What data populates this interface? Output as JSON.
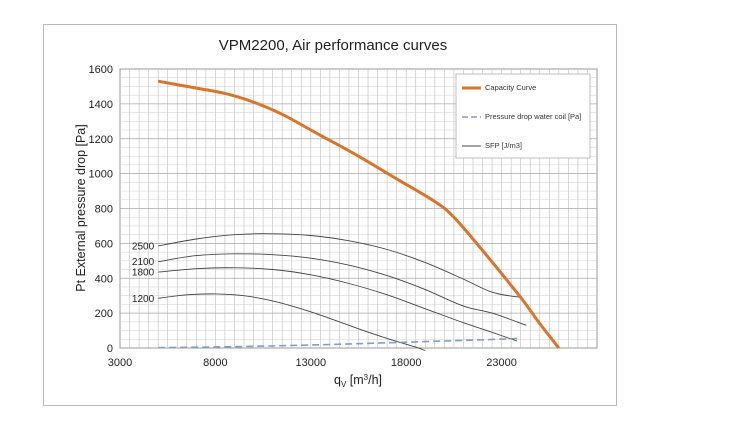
{
  "chart_data": {
    "type": "line",
    "title": "VPM2200, Air performance curves",
    "xlabel_main": "q",
    "xlabel_sub": "V",
    "xlabel_rest": " [m",
    "xlabel_sup": "3",
    "xlabel_end": "/h]",
    "ylabel": "Pt External pressure drop [Pa]",
    "xlim": [
      3000,
      28000
    ],
    "ylim": [
      0,
      1600
    ],
    "x_ticks": [
      3000,
      8000,
      13000,
      18000,
      23000
    ],
    "x_tick_labels": [
      "3000",
      "8000",
      "13000",
      "18000",
      "23000"
    ],
    "y_ticks": [
      0,
      200,
      400,
      600,
      800,
      1000,
      1200,
      1400,
      1600
    ],
    "y_tick_labels": [
      "0",
      "200",
      "400",
      "600",
      "800",
      "1000",
      "1200",
      "1400",
      "1600"
    ],
    "grid": true,
    "legend_position": "top-right",
    "legend": [
      {
        "label": "Capacity Curve",
        "color": "#d9742a",
        "style": "solid-thick"
      },
      {
        "label": "Pressure drop water coil [Pa]",
        "color": "#7f9dc8",
        "style": "dashed"
      },
      {
        "label": "SFP [J/m3]",
        "color": "#444444",
        "style": "solid-thin"
      }
    ],
    "series": [
      {
        "name": "Capacity Curve",
        "color": "#d9742a",
        "x": [
          5000,
          6500,
          8500,
          10000,
          11500,
          13500,
          15500,
          17500,
          19500,
          20500,
          22000,
          24000,
          25000,
          26000
        ],
        "y": [
          1530,
          1500,
          1460,
          1410,
          1340,
          1220,
          1100,
          970,
          840,
          750,
          560,
          290,
          140,
          0
        ]
      },
      {
        "name": "Pressure drop water coil [Pa]",
        "color": "#7f9dc8",
        "x": [
          5000,
          8000,
          11000,
          14000,
          17000,
          20000,
          22000,
          24000
        ],
        "y": [
          2,
          6,
          12,
          20,
          30,
          40,
          47,
          55
        ]
      },
      {
        "name": "SFP 2500",
        "label": "2500",
        "color": "#444444",
        "x": [
          5000,
          7000,
          9000,
          11000,
          13000,
          15000,
          17000,
          19000,
          21000,
          22500,
          24000
        ],
        "y": [
          585,
          625,
          650,
          655,
          645,
          615,
          565,
          490,
          395,
          320,
          290
        ]
      },
      {
        "name": "SFP 2100",
        "label": "2100",
        "color": "#444444",
        "x": [
          5000,
          7000,
          9000,
          11000,
          13000,
          15000,
          17000,
          19000,
          21000,
          22500,
          24300
        ],
        "y": [
          495,
          530,
          540,
          535,
          515,
          475,
          415,
          335,
          240,
          200,
          130
        ]
      },
      {
        "name": "SFP 1800",
        "label": "1800",
        "color": "#444444",
        "x": [
          5000,
          7000,
          9000,
          11000,
          13000,
          15000,
          17000,
          19000,
          21000,
          22500,
          23800
        ],
        "y": [
          435,
          455,
          460,
          450,
          420,
          370,
          305,
          225,
          145,
          90,
          40
        ]
      },
      {
        "name": "SFP 1200",
        "label": "1200",
        "color": "#444444",
        "x": [
          5000,
          6500,
          8000,
          9500,
          11000,
          12500,
          14000,
          15500,
          17000,
          18500,
          19000
        ],
        "y": [
          285,
          305,
          310,
          300,
          270,
          225,
          170,
          110,
          55,
          5,
          -15
        ]
      }
    ]
  }
}
